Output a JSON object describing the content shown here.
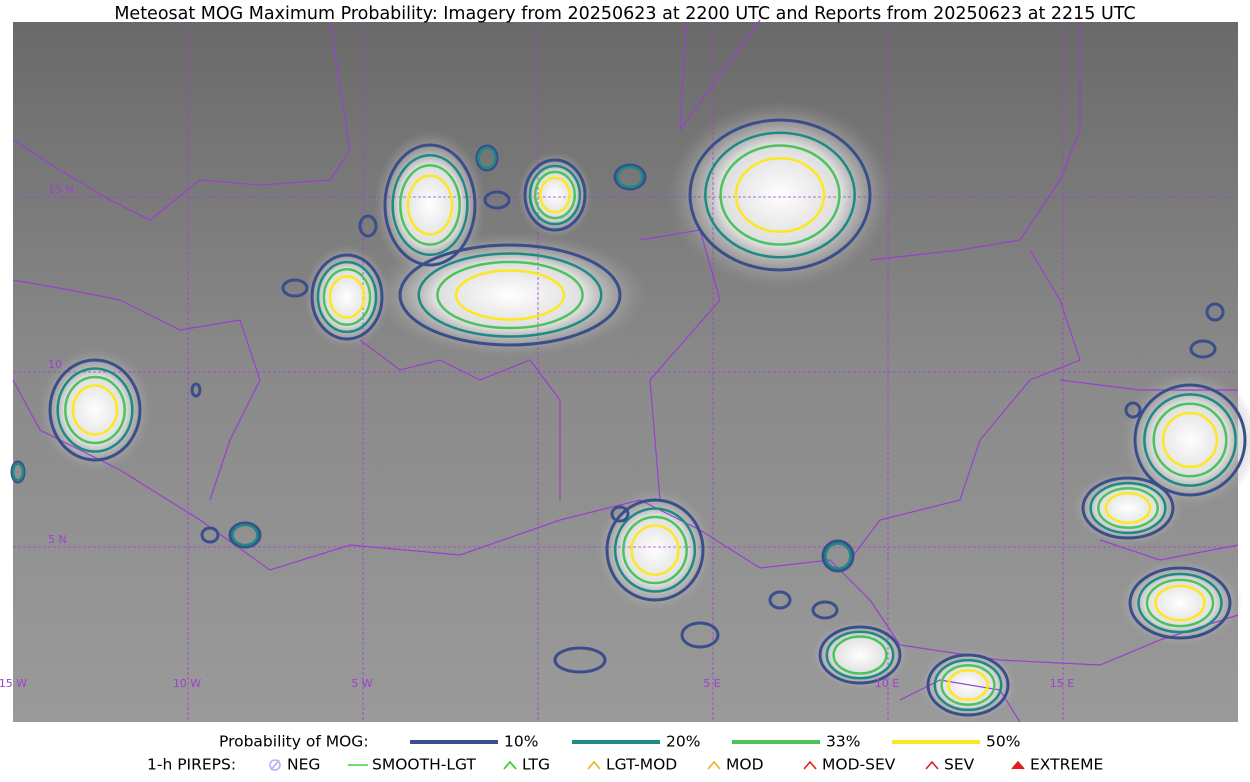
{
  "title": "Meteosat MOG Maximum Probability: Imagery from 20250623 at 2200 UTC and Reports from 20250623 at 2215 UTC",
  "grid_labels": {
    "lat": [
      "15 N",
      "10",
      "5 N"
    ],
    "lon": [
      "15 W",
      "10 W",
      "5 W",
      "5 E",
      "10 E",
      "15 E"
    ]
  },
  "legend": {
    "probability_title": "Probability of MOG:",
    "probability_levels": [
      {
        "label": "10%",
        "color": "#3b4e8c"
      },
      {
        "label": "20%",
        "color": "#1f8a84"
      },
      {
        "label": "33%",
        "color": "#4cc35f"
      },
      {
        "label": "50%",
        "color": "#fde725"
      }
    ],
    "pireps_title": "1-h PIREPS:",
    "pireps": [
      "NEG",
      "SMOOTH-LGT",
      "LTG",
      "LGT-MOD",
      "MOD",
      "MOD-SEV",
      "SEV",
      "EXTREME"
    ]
  }
}
